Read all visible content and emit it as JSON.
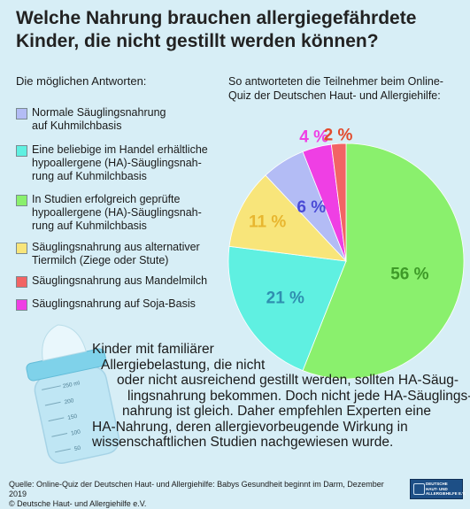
{
  "title": "Welche Nahrung brauchen allergiegefährdete Kinder, die nicht gestillt werden können?",
  "legend_heading": "Die möglichen Antworten:",
  "intro": "So antworteten die Teilnehmer beim Online-Quiz der Deutschen Haut- und Allergiehilfe:",
  "chart_data": {
    "type": "pie",
    "slices": [
      {
        "label": "Normale Säuglingsnahrung auf Kuhmilchbasis",
        "value": 6,
        "color": "#b3bcf5"
      },
      {
        "label": "Eine beliebige im Handel erhältliche hypoallergene (HA)-Säuglingsnahrung auf Kuhmilchbasis",
        "value": 21,
        "color": "#5ff0e1"
      },
      {
        "label": "In Studien erfolgreich geprüfte hypoallergene (HA)-Säuglingsnahrung auf Kuhmilchbasis",
        "value": 56,
        "color": "#8af06d"
      },
      {
        "label": "Säuglingsnahrung aus alternativer Tiermilch (Ziege oder Stute)",
        "value": 11,
        "color": "#f8e57a"
      },
      {
        "label": "Säuglingsnahrung aus Mandelmilch",
        "value": 2,
        "color": "#f26464"
      },
      {
        "label": "Säuglingsnahrung auf Soja-Basis",
        "value": 4,
        "color": "#ef3fe4"
      }
    ],
    "value_labels": [
      "6 %",
      "21 %",
      "56 %",
      "11 %",
      "2 %",
      "4 %"
    ],
    "value_label_colors": [
      "#4a4ad6",
      "#2f8fb0",
      "#3e9a28",
      "#e8b62f",
      "#e24a2c",
      "#ef3fe4"
    ]
  },
  "legend_lines": [
    [
      "Normale Säuglingsnahrung",
      "auf Kuhmilchbasis"
    ],
    [
      "Eine beliebige im Handel erhältliche",
      "hypoallergene (HA)-Säuglingsnah-",
      "rung auf Kuhmilchbasis"
    ],
    [
      "In Studien erfolgreich geprüfte",
      "hypoallergene (HA)-Säuglingsnah-",
      "rung auf Kuhmilchbasis"
    ],
    [
      "Säuglingsnahrung aus alternativer",
      "Tiermilch (Ziege oder Stute)"
    ],
    [
      "Säuglingsnahrung aus Mandelmilch"
    ],
    [
      "Säuglingsnahrung auf Soja-Basis"
    ]
  ],
  "body_lines": [
    "Kinder mit familiärer",
    "Allergiebelastung, die nicht",
    "oder nicht ausreichend gestillt werden, sollten HA-Säug-",
    "lingsnahrung bekommen. Doch nicht jede HA-Säuglings-",
    "nahrung ist gleich. Daher empfehlen Experten eine",
    "HA-Nahrung, deren allergievorbeugende Wirkung in",
    "wissenschaftlichen Studien nachgewiesen wurde."
  ],
  "bottle_marks": [
    "250 ml",
    "200",
    "150",
    "100",
    "50"
  ],
  "source_line_1": "Quelle: Online-Quiz der Deutschen Haut- und Allergiehilfe: Babys Gesundheit beginnt im Darm, Dezember 2019",
  "source_line_2": "© Deutsche Haut- und Allergiehilfe e.V.",
  "logo_lines": [
    "DEUTSCHE",
    "HAUT- UND",
    "ALLERGIEHILFE E.V."
  ]
}
